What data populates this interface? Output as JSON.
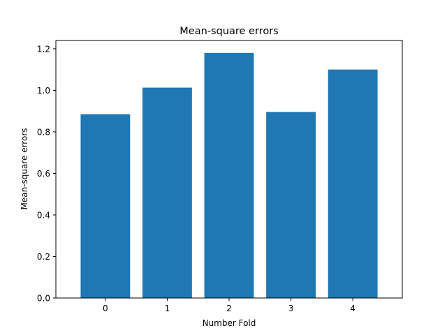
{
  "chart_data": {
    "type": "bar",
    "title": "Mean-square errors",
    "xlabel": "Number Fold",
    "ylabel": "Mean-square errors",
    "categories": [
      "0",
      "1",
      "2",
      "3",
      "4"
    ],
    "values": [
      0.885,
      1.013,
      1.18,
      0.896,
      1.1
    ],
    "ylim": [
      0,
      1.24
    ],
    "yticks": [
      0.0,
      0.2,
      0.4,
      0.6,
      0.8,
      1.0,
      1.2
    ],
    "ytick_labels": [
      "0.0",
      "0.2",
      "0.4",
      "0.6",
      "0.8",
      "1.0",
      "1.2"
    ],
    "bar_color": "#1f77b4",
    "grid": false,
    "legend": "none"
  }
}
